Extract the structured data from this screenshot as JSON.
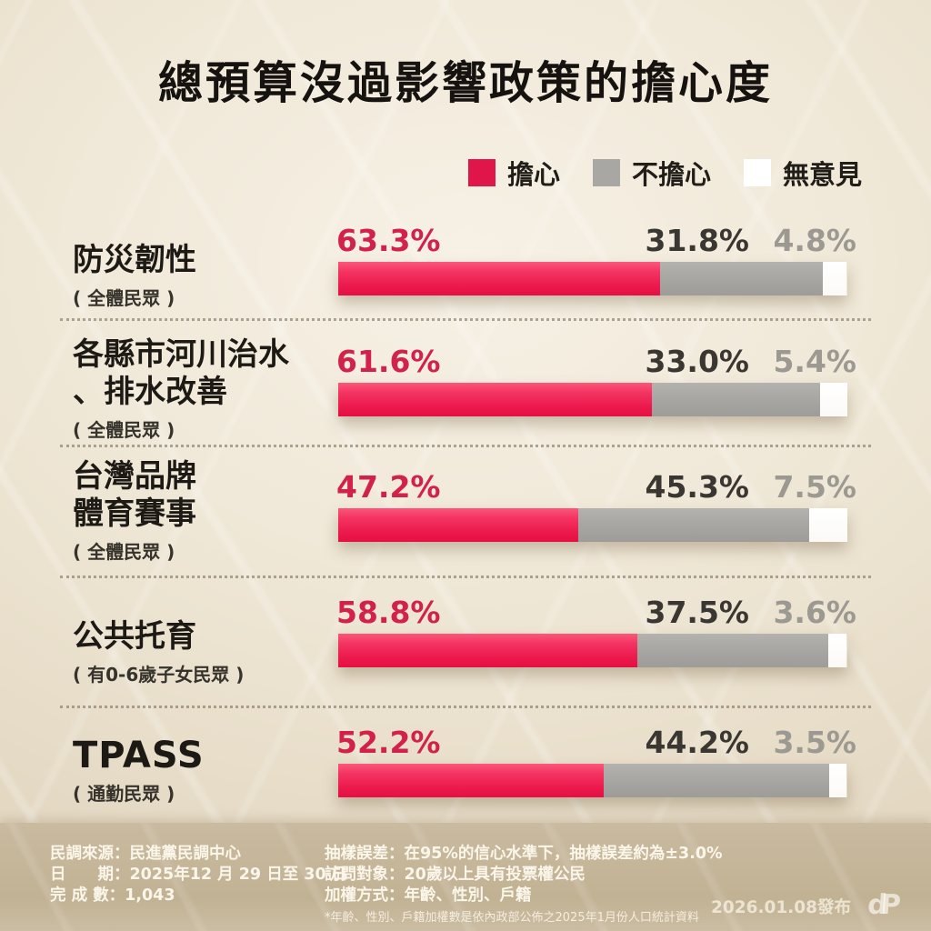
{
  "title": "總預算沒過影響政策的擔心度",
  "legend": [
    {
      "label": "擔心",
      "color": "#e0164a"
    },
    {
      "label": "不擔心",
      "color": "#a9a7a4"
    },
    {
      "label": "無意見",
      "color": "#ffffff"
    }
  ],
  "chart_data": {
    "type": "bar",
    "orientation": "horizontal",
    "stacked": true,
    "title": "總預算沒過影響政策的擔心度",
    "categories": [
      "防災韌性",
      "各縣市河川治水、排水改善",
      "台灣品牌體育賽事",
      "公共托育",
      "TPASS"
    ],
    "category_groups": [
      "( 全體民眾 )",
      "( 全體民眾 )",
      "( 全體民眾 )",
      "( 有0-6歲子女民眾 )",
      "( 通勤民眾 )"
    ],
    "series": [
      {
        "name": "擔心",
        "color": "#ec1a4d",
        "values": [
          63.3,
          61.6,
          47.2,
          58.8,
          52.2
        ]
      },
      {
        "name": "不擔心",
        "color": "#a8a6a3",
        "values": [
          31.8,
          33.0,
          45.3,
          37.5,
          44.2
        ]
      },
      {
        "name": "無意見",
        "color": "#ffffff",
        "values": [
          4.8,
          5.4,
          7.5,
          3.6,
          3.5
        ]
      }
    ],
    "xlim": [
      0,
      100
    ],
    "value_suffix": "%",
    "grid": false,
    "legend_position": "top-right"
  },
  "rows": [
    {
      "category": "防災韌性",
      "group": "( 全體民眾 )",
      "worried": "63.3%",
      "not_worried": "31.8%",
      "no_opinion": "4.8%"
    },
    {
      "category": "各縣市河川治水\n、排水改善",
      "group": "( 全體民眾 )",
      "worried": "61.6%",
      "not_worried": "33.0%",
      "no_opinion": "5.4%"
    },
    {
      "category": "台灣品牌\n體育賽事",
      "group": "( 全體民眾 )",
      "worried": "47.2%",
      "not_worried": "45.3%",
      "no_opinion": "7.5%"
    },
    {
      "category": "公共托育",
      "group": "( 有0-6歲子女民眾 )",
      "worried": "58.8%",
      "not_worried": "37.5%",
      "no_opinion": "3.6%"
    },
    {
      "category": "TPASS",
      "group": "( 通勤民眾 )",
      "worried": "52.2%",
      "not_worried": "44.2%",
      "no_opinion": "3.5%"
    }
  ],
  "footer": {
    "left": [
      "民調來源：民進黨民調中心",
      "日　　期：2025年12 月 29 日至 30 日",
      "完 成 數：1,043"
    ],
    "right": [
      "抽樣誤差：在95%的信心水準下，抽樣誤差約為±3.0%",
      "訪問對象：20歲以上具有投票權公民",
      "加權方式：年齡、性別、戶籍"
    ],
    "note": "*年齡、性別、戶籍加權數是依內政部公佈之2025年1月份人口統計資料",
    "release": "2026.01.08發布",
    "logo_text": "dP"
  },
  "colors": {
    "worried_bar": "#ec1a4d",
    "worried_text": "#d2214b",
    "not_worried_bar": "#a8a6a3",
    "not_worried_text": "#3a3733",
    "no_opinion_bar": "#ffffff",
    "no_opinion_text": "#9c9892",
    "background": "#efe7d6",
    "footer_band": "#c2b294",
    "title_text": "#15120f"
  }
}
